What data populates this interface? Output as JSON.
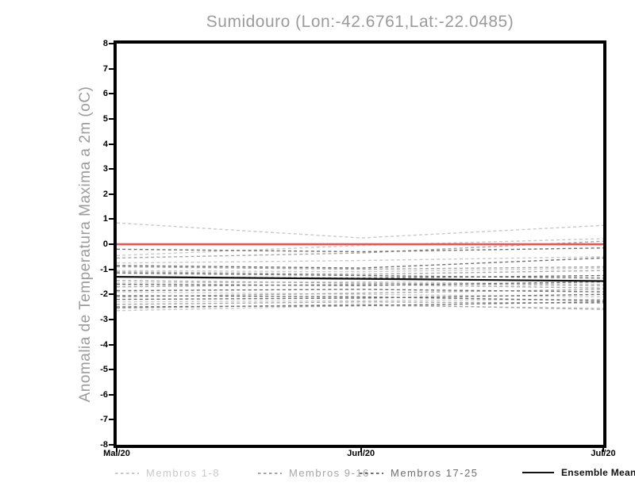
{
  "title": "Sumidouro (Lon:-42.6761,Lat:-22.0485)",
  "y_axis": {
    "label": "Anomalia de Temperatura Maxima a 2m (oC)",
    "ticks": [
      8,
      7,
      6,
      5,
      4,
      3,
      2,
      1,
      0,
      -1,
      -2,
      -3,
      -4,
      -5,
      -6,
      -7,
      -8
    ]
  },
  "x_axis": {
    "ticks": [
      "Mai/20",
      "Jun/20",
      "Jul/20"
    ]
  },
  "legend": {
    "items": [
      {
        "label": "Membros 1-8",
        "color": "#c9c9c9",
        "style": "dashed"
      },
      {
        "label": "Membros 9-16",
        "color": "#a6a6a6",
        "style": "dashed"
      },
      {
        "label": "Membros 17-25",
        "color": "#6f6f6f",
        "style": "dashed"
      },
      {
        "label": "Ensemble Mean",
        "color": "#111111",
        "style": "solid"
      }
    ]
  },
  "colors": {
    "zero_line": "#f25050",
    "axis": "#000000",
    "title_text": "#9b9b9b"
  },
  "chart_data": {
    "type": "line",
    "title": "Sumidouro (Lon:-42.6761,Lat:-22.0485)",
    "xlabel": "",
    "ylabel": "Anomalia de Temperatura Maxima a 2m (oC)",
    "x": [
      "Mai/20",
      "Jun/20",
      "Jul/20"
    ],
    "x_positions": [
      0,
      0.502,
      1
    ],
    "ylim": [
      -8,
      8
    ],
    "grid": false,
    "legend_position": "bottom",
    "zero_line": {
      "value": 0,
      "color": "#f25050"
    },
    "ensemble_mean": {
      "name": "Ensemble Mean",
      "color": "#111111",
      "values": [
        -1.3,
        -1.38,
        -1.47
      ]
    },
    "member_groups": [
      {
        "name": "Membros 1-8",
        "color": "#c9c9c9",
        "series": [
          [
            0.85,
            0.25,
            0.75
          ],
          [
            -0.45,
            -0.05,
            0.22
          ],
          [
            -0.75,
            -0.65,
            -0.5
          ],
          [
            -1.05,
            -1.1,
            -0.95
          ],
          [
            -1.55,
            -1.5,
            -1.6
          ],
          [
            -1.9,
            -2.0,
            -2.1
          ],
          [
            -2.3,
            -2.25,
            -2.2
          ],
          [
            -2.65,
            -2.45,
            -2.55
          ]
        ]
      },
      {
        "name": "Membros 9-16",
        "color": "#a6a6a6",
        "series": [
          [
            -0.55,
            -0.35,
            0.12
          ],
          [
            -0.9,
            -1.0,
            -0.9
          ],
          [
            -1.1,
            -1.2,
            -1.05
          ],
          [
            -1.45,
            -1.55,
            -1.65
          ],
          [
            -1.7,
            -1.6,
            -1.75
          ],
          [
            -2.1,
            -1.95,
            -1.8
          ],
          [
            -2.4,
            -2.3,
            -2.35
          ],
          [
            -2.55,
            -2.4,
            -2.6
          ]
        ]
      },
      {
        "name": "Membros 17-25",
        "color": "#6f6f6f",
        "series": [
          [
            -0.2,
            -0.3,
            -0.15
          ],
          [
            -0.85,
            -0.95,
            -0.55
          ],
          [
            -1.15,
            -1.25,
            -1.35
          ],
          [
            -1.3,
            -1.35,
            -1.25
          ],
          [
            -1.6,
            -1.65,
            -1.5
          ],
          [
            -1.85,
            -1.8,
            -1.9
          ],
          [
            -2.05,
            -2.1,
            -2.25
          ],
          [
            -2.2,
            -2.15,
            -2.0
          ],
          [
            -2.5,
            -2.45,
            -2.3
          ]
        ]
      }
    ]
  }
}
